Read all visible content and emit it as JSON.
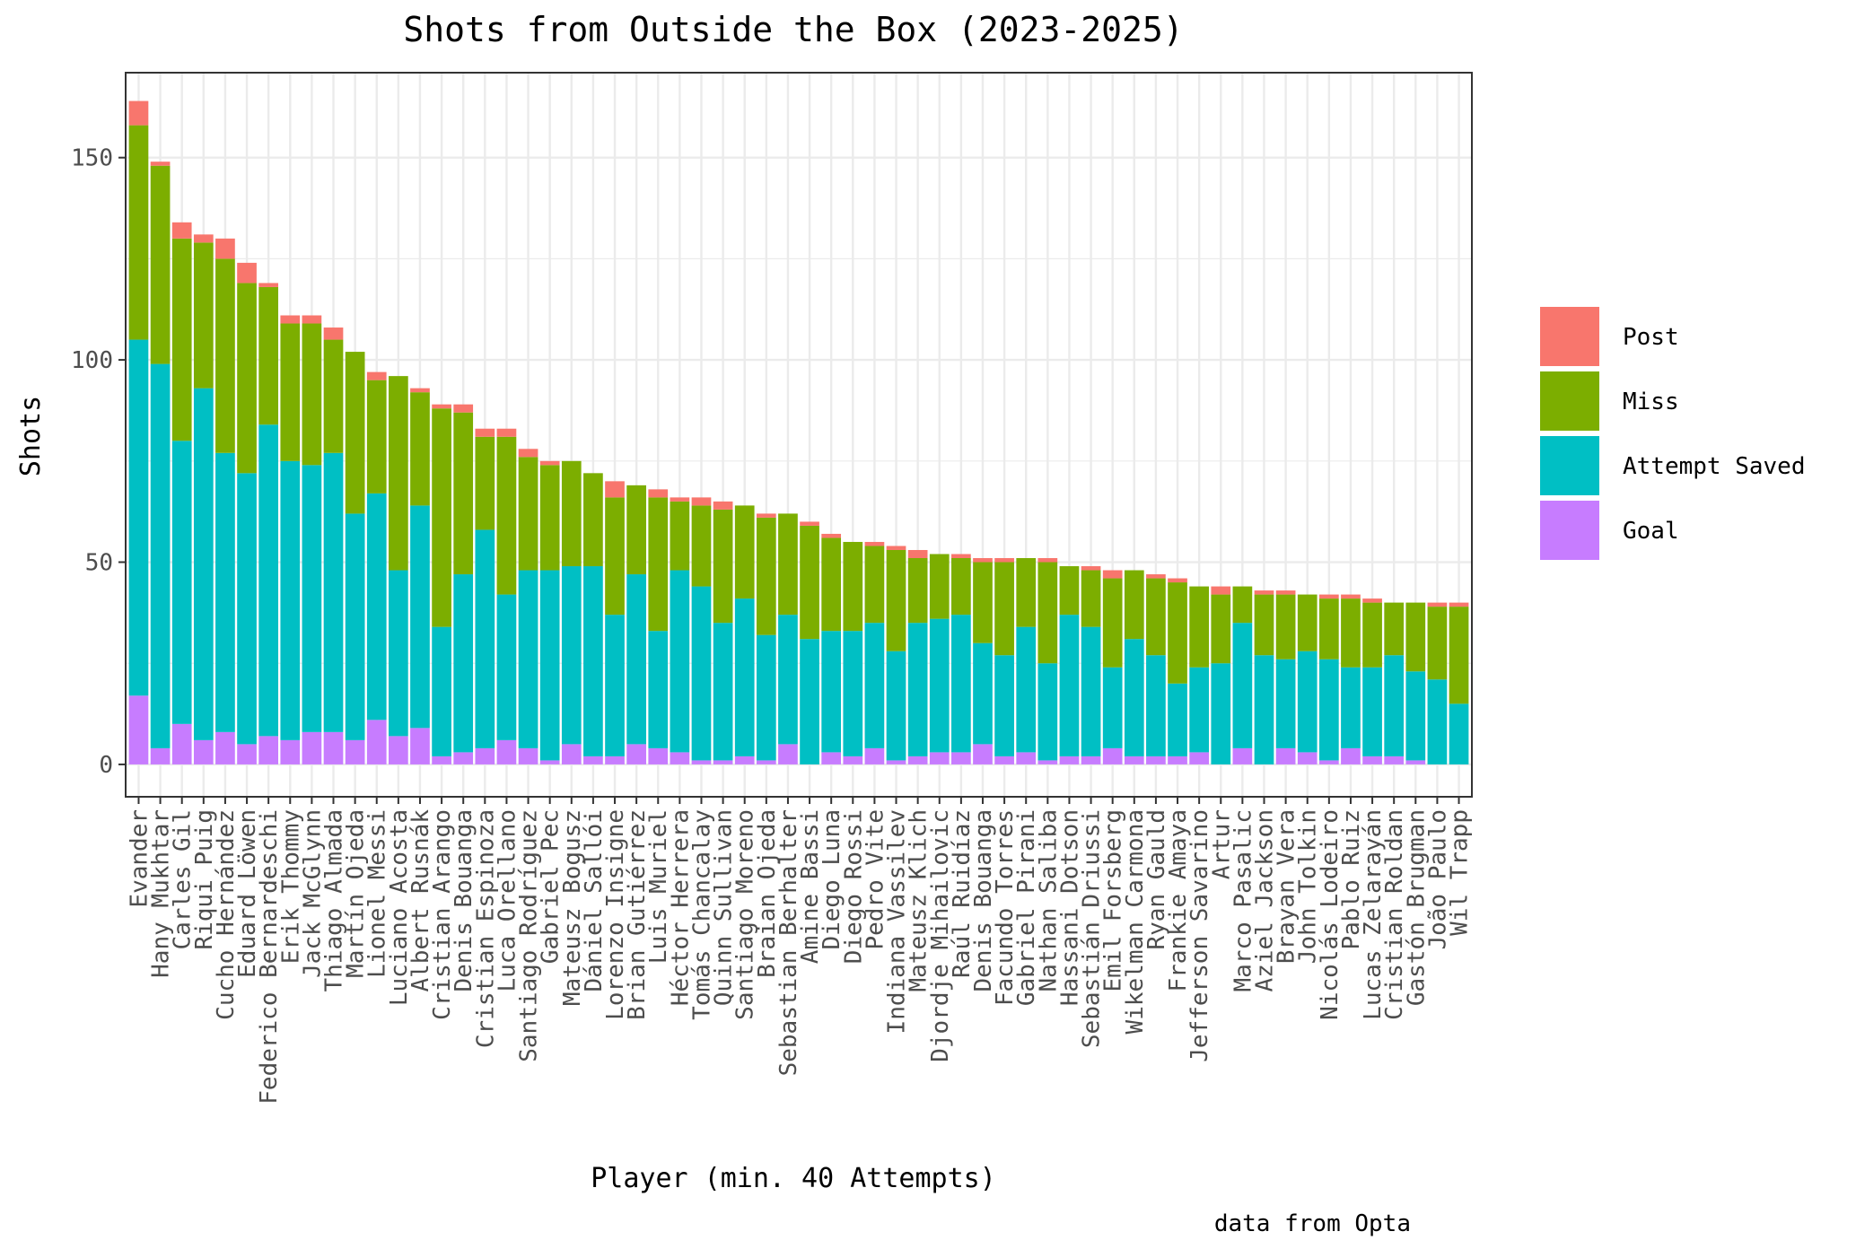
{
  "chart_data": {
    "type": "bar",
    "stacked": true,
    "title": "Shots from Outside the Box (2023-2025)",
    "xlabel": "Player (min. 40 Attempts)",
    "ylabel": "Shots",
    "caption": "data from Opta",
    "ylim": [
      -8,
      171
    ],
    "yticks": [
      0,
      50,
      100,
      150
    ],
    "grid": true,
    "legend_position": "right",
    "categories": [
      "Evander",
      "Hany Mukhtar",
      "Carles Gil",
      "Riqui Puig",
      "Cucho Hernández",
      "Eduard Löwen",
      "Federico Bernardeschi",
      "Erik Thommy",
      "Jack McGlynn",
      "Thiago Almada",
      "Martín Ojeda",
      "Lionel Messi",
      "Luciano Acosta",
      "Albert Rusnák",
      "Cristian Arango",
      "Denis Bouanga",
      "Cristian Espinoza",
      "Luca Orellano",
      "Santiago Rodríguez",
      "Gabriel Pec",
      "Mateusz Bogusz",
      "Dániel Sallói",
      "Lorenzo Insigne",
      "Brian Gutiérrez",
      "Luis Muriel",
      "Héctor Herrera",
      "Tomás Chancalay",
      "Quinn Sullivan",
      "Santiago Moreno",
      "Braian Ojeda",
      "Sebastian Berhalter",
      "Amine Bassi",
      "Diego Luna",
      "Diego Rossi",
      "Pedro Vite",
      "Indiana Vassilev",
      "Mateusz Klich",
      "Djordje Mihailovic",
      "Raúl Ruidíaz",
      "Denis Bouanga",
      "Facundo Torres",
      "Gabriel Pirani",
      "Nathan Saliba",
      "Hassani Dotson",
      "Sebastián Driussi",
      "Emil Forsberg",
      "Wikelman Carmona",
      "Ryan Gauld",
      "Frankie Amaya",
      "Jefferson Savarino",
      "Artur",
      "Marco Pasalic",
      "Aziel Jackson",
      "Brayan Vera",
      "John Tolkin",
      "Nicolás Lodeiro",
      "Pablo Ruiz",
      "Lucas Zelarayán",
      "Cristian Roldan",
      "Gastón Brugman",
      "João Paulo",
      "Wil Trapp"
    ],
    "series": [
      {
        "name": "Goal",
        "color": "#C77CFF",
        "values": [
          17,
          4,
          10,
          6,
          8,
          5,
          7,
          6,
          8,
          8,
          6,
          11,
          7,
          9,
          2,
          3,
          4,
          6,
          4,
          1,
          5,
          2,
          2,
          5,
          4,
          3,
          1,
          1,
          2,
          1,
          5,
          0,
          3,
          2,
          4,
          1,
          2,
          3,
          3,
          5,
          2,
          3,
          1,
          2,
          2,
          4,
          2,
          2,
          2,
          3,
          0,
          4,
          0,
          4,
          3,
          1,
          4,
          2,
          2,
          1,
          0,
          0
        ]
      },
      {
        "name": "Attempt Saved",
        "color": "#00BFC4",
        "values": [
          88,
          95,
          70,
          87,
          69,
          67,
          77,
          69,
          66,
          69,
          56,
          56,
          41,
          55,
          32,
          44,
          54,
          36,
          44,
          47,
          44,
          47,
          35,
          42,
          29,
          45,
          43,
          34,
          39,
          31,
          32,
          31,
          30,
          31,
          31,
          27,
          33,
          33,
          34,
          25,
          25,
          31,
          24,
          35,
          32,
          20,
          29,
          25,
          18,
          21,
          25,
          31,
          27,
          22,
          25,
          25,
          20,
          22,
          25,
          22,
          21,
          15
        ]
      },
      {
        "name": "Miss",
        "color": "#7CAE00",
        "values": [
          53,
          49,
          50,
          36,
          48,
          47,
          34,
          34,
          35,
          28,
          40,
          28,
          48,
          28,
          54,
          40,
          23,
          39,
          28,
          26,
          26,
          23,
          29,
          22,
          33,
          17,
          20,
          28,
          23,
          29,
          25,
          28,
          23,
          22,
          19,
          25,
          16,
          16,
          14,
          20,
          23,
          17,
          25,
          12,
          14,
          22,
          17,
          19,
          25,
          20,
          17,
          9,
          15,
          16,
          14,
          15,
          17,
          16,
          13,
          17,
          18,
          24
        ]
      },
      {
        "name": "Post",
        "color": "#F8766D",
        "values": [
          6,
          1,
          4,
          2,
          5,
          5,
          1,
          2,
          2,
          3,
          0,
          2,
          0,
          1,
          1,
          2,
          2,
          2,
          2,
          1,
          0,
          0,
          4,
          0,
          2,
          1,
          2,
          2,
          0,
          1,
          0,
          1,
          1,
          0,
          1,
          1,
          2,
          0,
          1,
          1,
          1,
          0,
          1,
          0,
          1,
          2,
          0,
          1,
          1,
          0,
          2,
          0,
          1,
          1,
          0,
          1,
          1,
          1,
          0,
          0,
          1,
          1
        ]
      }
    ],
    "legend_order": [
      "Post",
      "Miss",
      "Attempt Saved",
      "Goal"
    ]
  }
}
